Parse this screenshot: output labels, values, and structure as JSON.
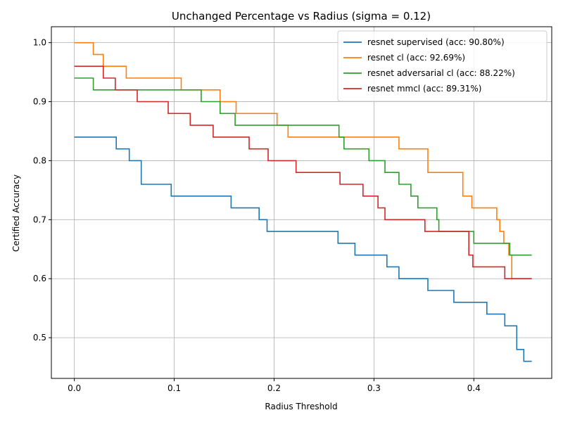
{
  "chart_data": {
    "type": "line",
    "title": "Unchanged Percentage vs Radius (sigma = 0.12)",
    "xlabel": "Radius Threshold",
    "ylabel": "Certified Accuracy",
    "xlim": [
      -0.023,
      0.478
    ],
    "ylim": [
      0.431,
      1.027
    ],
    "xticks": [
      0.0,
      0.1,
      0.2,
      0.3,
      0.4
    ],
    "xtick_labels": [
      "0.0",
      "0.1",
      "0.2",
      "0.3",
      "0.4"
    ],
    "yticks": [
      0.5,
      0.6,
      0.7,
      0.8,
      0.9,
      1.0
    ],
    "ytick_labels": [
      "0.5",
      "0.6",
      "0.7",
      "0.8",
      "0.9",
      "1.0"
    ],
    "grid": true,
    "legend_position": "top-right",
    "series": [
      {
        "name": "resnet supervised (acc: 90.80%)",
        "color": "#1f77b4",
        "steps": [
          [
            0.0,
            0.84
          ],
          [
            0.042,
            0.82
          ],
          [
            0.055,
            0.8
          ],
          [
            0.067,
            0.76
          ],
          [
            0.097,
            0.74
          ],
          [
            0.157,
            0.72
          ],
          [
            0.185,
            0.7
          ],
          [
            0.193,
            0.68
          ],
          [
            0.264,
            0.66
          ],
          [
            0.281,
            0.64
          ],
          [
            0.313,
            0.62
          ],
          [
            0.325,
            0.6
          ],
          [
            0.354,
            0.58
          ],
          [
            0.38,
            0.56
          ],
          [
            0.413,
            0.54
          ],
          [
            0.431,
            0.52
          ],
          [
            0.443,
            0.48
          ],
          [
            0.45,
            0.46
          ],
          [
            0.458,
            0.46
          ]
        ]
      },
      {
        "name": "resnet cl (acc: 92.69%)",
        "color": "#ff7f0e",
        "steps": [
          [
            0.0,
            1.0
          ],
          [
            0.019,
            0.98
          ],
          [
            0.029,
            0.96
          ],
          [
            0.052,
            0.94
          ],
          [
            0.107,
            0.92
          ],
          [
            0.146,
            0.9
          ],
          [
            0.162,
            0.88
          ],
          [
            0.203,
            0.86
          ],
          [
            0.214,
            0.84
          ],
          [
            0.325,
            0.82
          ],
          [
            0.354,
            0.78
          ],
          [
            0.389,
            0.74
          ],
          [
            0.398,
            0.72
          ],
          [
            0.423,
            0.7
          ],
          [
            0.426,
            0.68
          ],
          [
            0.43,
            0.66
          ],
          [
            0.435,
            0.64
          ],
          [
            0.438,
            0.6
          ],
          [
            0.458,
            0.6
          ]
        ]
      },
      {
        "name": "resnet adversarial cl (acc: 88.22%)",
        "color": "#2ca02c",
        "steps": [
          [
            0.0,
            0.94
          ],
          [
            0.019,
            0.92
          ],
          [
            0.127,
            0.9
          ],
          [
            0.146,
            0.88
          ],
          [
            0.161,
            0.86
          ],
          [
            0.265,
            0.84
          ],
          [
            0.27,
            0.82
          ],
          [
            0.295,
            0.8
          ],
          [
            0.311,
            0.78
          ],
          [
            0.325,
            0.76
          ],
          [
            0.337,
            0.74
          ],
          [
            0.344,
            0.72
          ],
          [
            0.363,
            0.7
          ],
          [
            0.365,
            0.68
          ],
          [
            0.4,
            0.66
          ],
          [
            0.436,
            0.64
          ],
          [
            0.458,
            0.64
          ]
        ]
      },
      {
        "name": "resnet mmcl (acc: 89.31%)",
        "color": "#d62728",
        "steps": [
          [
            0.0,
            0.96
          ],
          [
            0.029,
            0.94
          ],
          [
            0.041,
            0.92
          ],
          [
            0.063,
            0.9
          ],
          [
            0.094,
            0.88
          ],
          [
            0.116,
            0.86
          ],
          [
            0.139,
            0.84
          ],
          [
            0.175,
            0.82
          ],
          [
            0.194,
            0.8
          ],
          [
            0.222,
            0.78
          ],
          [
            0.266,
            0.76
          ],
          [
            0.289,
            0.74
          ],
          [
            0.304,
            0.72
          ],
          [
            0.311,
            0.7
          ],
          [
            0.351,
            0.68
          ],
          [
            0.395,
            0.64
          ],
          [
            0.399,
            0.62
          ],
          [
            0.431,
            0.6
          ],
          [
            0.458,
            0.6
          ]
        ]
      }
    ]
  }
}
